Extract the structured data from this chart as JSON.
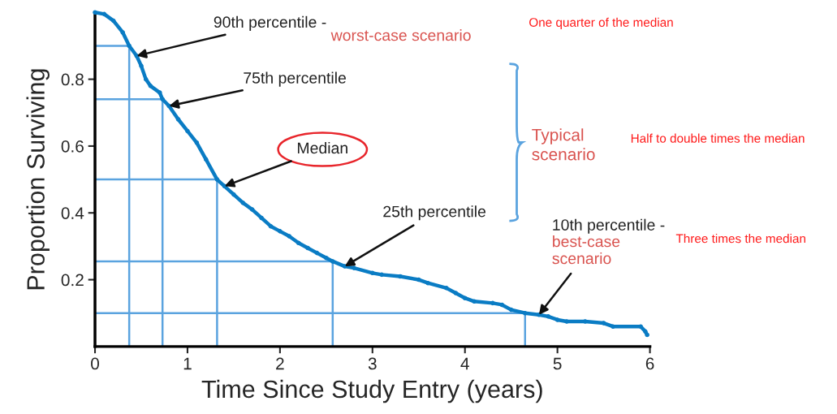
{
  "chart_data": {
    "type": "line",
    "xlabel": "Time Since Study Entry (years)",
    "ylabel": "Proportion Surviving",
    "xlim": [
      0,
      6
    ],
    "xticks": [
      0,
      1,
      2,
      3,
      4,
      5,
      6
    ],
    "ylim": [
      0,
      1
    ],
    "yticks": [
      0.2,
      0.4,
      0.6,
      0.8
    ],
    "grid": false,
    "marker": "circle",
    "line_style": "solid",
    "series": [
      {
        "color": "#0a7cc4",
        "x": [
          0,
          0.1,
          0.2,
          0.3,
          0.37,
          0.45,
          0.5,
          0.55,
          0.6,
          0.7,
          0.73,
          0.8,
          0.9,
          1.0,
          1.1,
          1.2,
          1.32,
          1.4,
          1.5,
          1.6,
          1.7,
          1.8,
          1.9,
          2.0,
          2.1,
          2.2,
          2.3,
          2.4,
          2.5,
          2.57,
          2.7,
          2.8,
          3.0,
          3.1,
          3.3,
          3.5,
          3.6,
          3.8,
          3.9,
          4.0,
          4.1,
          4.3,
          4.4,
          4.5,
          4.65,
          4.8,
          4.9,
          5.0,
          5.1,
          5.3,
          5.5,
          5.6,
          5.9,
          5.95,
          5.97
        ],
        "values": [
          1.0,
          0.995,
          0.975,
          0.94,
          0.9,
          0.87,
          0.84,
          0.8,
          0.78,
          0.76,
          0.74,
          0.72,
          0.68,
          0.645,
          0.61,
          0.56,
          0.5,
          0.48,
          0.455,
          0.43,
          0.41,
          0.385,
          0.36,
          0.345,
          0.33,
          0.31,
          0.295,
          0.28,
          0.265,
          0.255,
          0.24,
          0.235,
          0.22,
          0.215,
          0.21,
          0.2,
          0.19,
          0.175,
          0.16,
          0.145,
          0.135,
          0.13,
          0.125,
          0.11,
          0.1,
          0.095,
          0.09,
          0.08,
          0.075,
          0.075,
          0.07,
          0.06,
          0.06,
          0.045,
          0.035
        ]
      },
      {
        "type": "line",
        "marker": "none",
        "color": "#5aa3df",
        "x": [
          0,
          0.37,
          0.37
        ],
        "values": [
          0.9,
          0.9,
          0
        ]
      },
      {
        "type": "line",
        "marker": "none",
        "color": "#5aa3df",
        "x": [
          0,
          0.73,
          0.73
        ],
        "values": [
          0.74,
          0.74,
          0
        ]
      },
      {
        "type": "line",
        "marker": "none",
        "color": "#5aa3df",
        "x": [
          0,
          1.32,
          1.32
        ],
        "values": [
          0.5,
          0.5,
          0
        ]
      },
      {
        "type": "line",
        "marker": "none",
        "color": "#5aa3df",
        "x": [
          0,
          2.57,
          2.57
        ],
        "values": [
          0.255,
          0.255,
          0
        ]
      },
      {
        "type": "line",
        "marker": "none",
        "color": "#5aa3df",
        "x": [
          0,
          4.65,
          4.65
        ],
        "values": [
          0.1,
          0.1,
          0
        ]
      }
    ],
    "annotations": [
      {
        "text": "90th percentile - ",
        "x": 0.45,
        "y": 0.87
      },
      "worst-case scenario",
      "One quarter of the median",
      {
        "text": "75th percentile",
        "x": 0.8,
        "y": 0.72
      },
      {
        "text": "Median",
        "x": 1.4,
        "y": 0.48
      },
      "Typical\nscenario",
      "Half to double times the median",
      {
        "text": "25th percentile",
        "x": 2.7,
        "y": 0.24
      },
      "10th percentile -",
      {
        "text": "best-case\nscenario",
        "x": 4.8,
        "y": 0.095
      },
      "Three times the median"
    ]
  }
}
